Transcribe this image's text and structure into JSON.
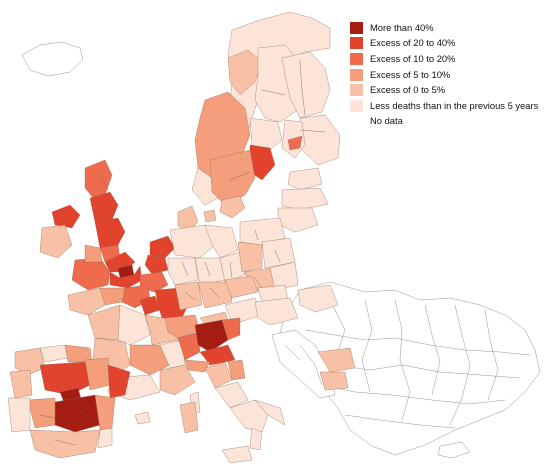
{
  "colors": {
    "more_than_40": "#a51d12",
    "excess_20_40": "#e2432c",
    "excess_10_20": "#ef6b4d",
    "excess_5_10": "#f59e7b",
    "excess_0_5": "#f8c1a6",
    "less_deaths": "#fce5d8",
    "no_data": "#ffffff",
    "region_border": "#8a6a5a",
    "no_data_border": "#7a7a7a"
  },
  "legend": [
    {
      "label": "More than 40%",
      "color": "#a51d12"
    },
    {
      "label": "Excess of 20 to 40%",
      "color": "#e2432c"
    },
    {
      "label": "Excess of 10 to 20%",
      "color": "#ef6b4d"
    },
    {
      "label": "Excess of 5 to 10%",
      "color": "#f59e7b"
    },
    {
      "label": "Excess of 0 to 5%",
      "color": "#f8c1a6"
    },
    {
      "label": "Less deaths than in the previous 5 years",
      "color": "#fce5d8"
    },
    {
      "label": "No data",
      "color": "#ffffff"
    }
  ]
}
